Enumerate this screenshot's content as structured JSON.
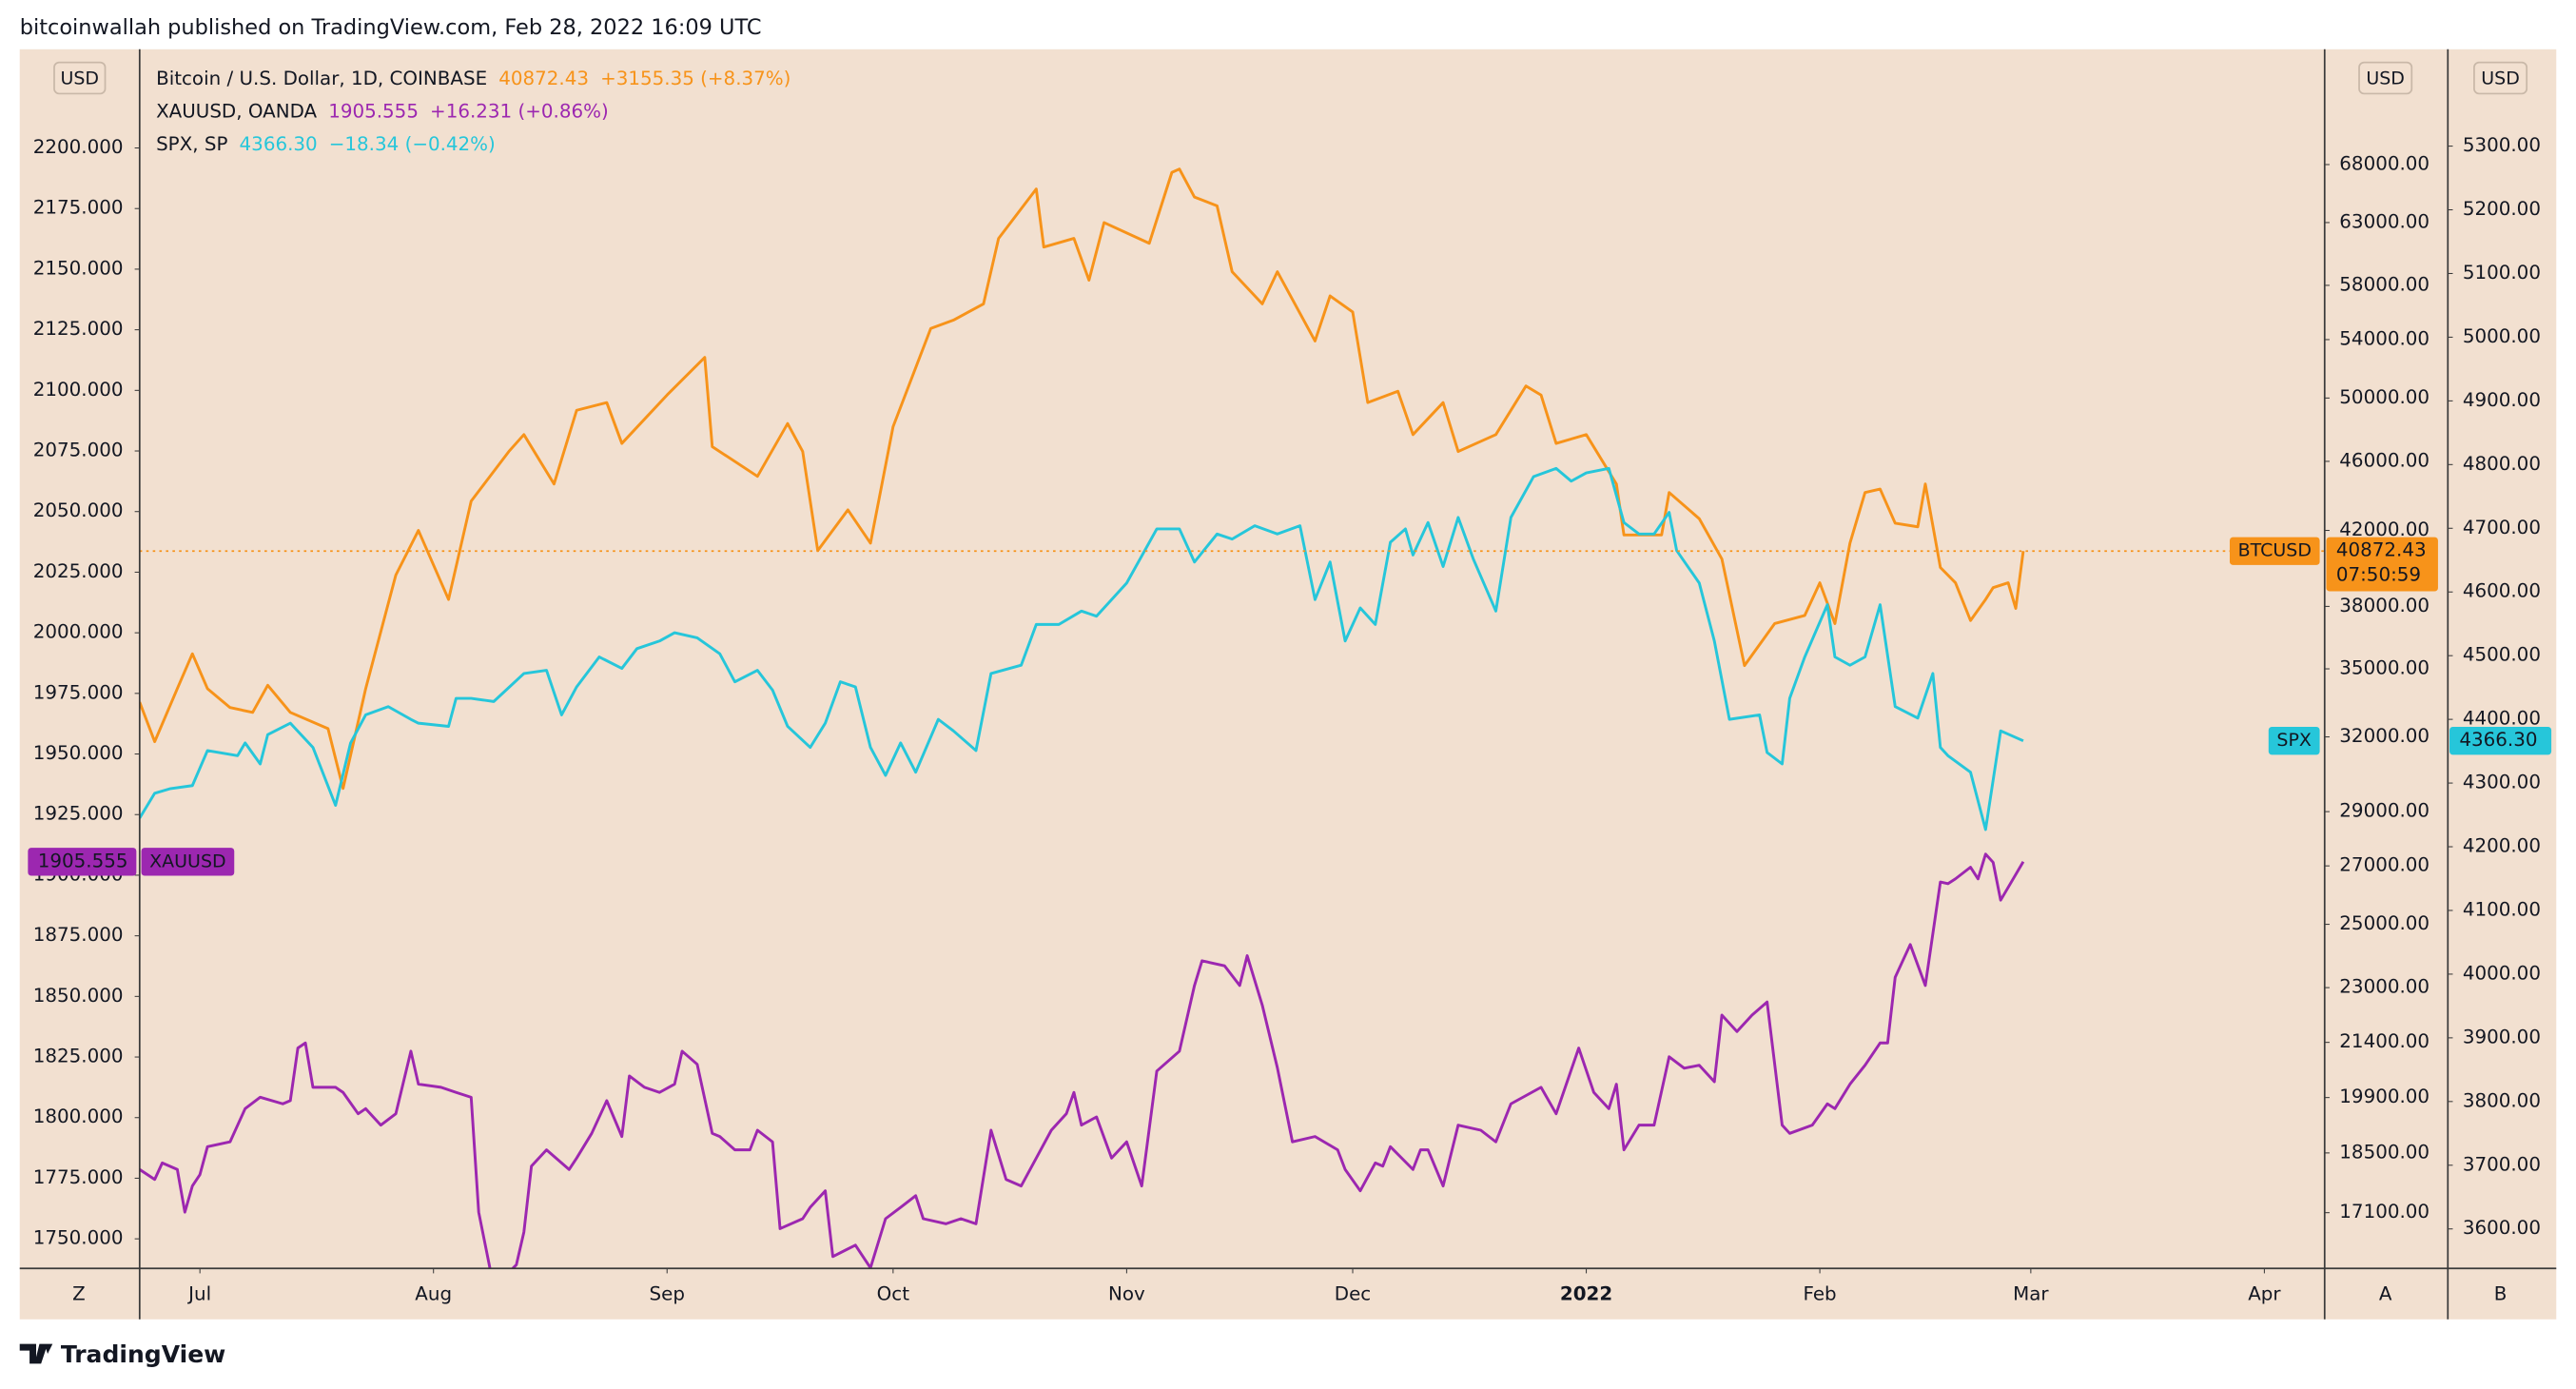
{
  "header": "bitcoinwallah published on TradingView.com, Feb 28, 2022 16:09 UTC",
  "branding": "TradingView",
  "chart_data": {
    "type": "line",
    "axis_unit": "USD",
    "axis_buttons": [
      "Z",
      "A",
      "B"
    ],
    "xlim": [
      1,
      291
    ],
    "xticks": [
      {
        "value": 9,
        "label": "Jul"
      },
      {
        "value": 40,
        "label": "Aug"
      },
      {
        "value": 71,
        "label": "Sep"
      },
      {
        "value": 101,
        "label": "Oct"
      },
      {
        "value": 132,
        "label": "Nov"
      },
      {
        "value": 162,
        "label": "Dec"
      },
      {
        "value": 193,
        "label": "2022"
      },
      {
        "value": 224,
        "label": "Feb"
      },
      {
        "value": 252,
        "label": "Mar"
      },
      {
        "value": 283,
        "label": "Apr"
      }
    ],
    "ylim": [
      1737.8,
      2240.7
    ],
    "yticks": [
      {
        "value": 1750,
        "label": "1750.000"
      },
      {
        "value": 1775,
        "label": "1775.000"
      },
      {
        "value": 1800,
        "label": "1800.000"
      },
      {
        "value": 1825,
        "label": "1825.000"
      },
      {
        "value": 1850,
        "label": "1850.000"
      },
      {
        "value": 1875,
        "label": "1875.000"
      },
      {
        "value": 1900,
        "label": "1900.000"
      },
      {
        "value": 1925,
        "label": "1925.000"
      },
      {
        "value": 1950,
        "label": "1950.000"
      },
      {
        "value": 1975,
        "label": "1975.000"
      },
      {
        "value": 2000,
        "label": "2000.000"
      },
      {
        "value": 2025,
        "label": "2025.000"
      },
      {
        "value": 2050,
        "label": "2050.000"
      },
      {
        "value": 2075,
        "label": "2075.000"
      },
      {
        "value": 2100,
        "label": "2100.000"
      },
      {
        "value": 2125,
        "label": "2125.000"
      },
      {
        "value": 2150,
        "label": "2150.000"
      },
      {
        "value": 2175,
        "label": "2175.000"
      },
      {
        "value": 2200,
        "label": "2200.000"
      }
    ],
    "y2lim": [
      15890,
      79150
    ],
    "y2log": true,
    "y2ticks": [
      {
        "value": 17100,
        "label": "17100.00"
      },
      {
        "value": 18500,
        "label": "18500.00"
      },
      {
        "value": 19900,
        "label": "19900.00"
      },
      {
        "value": 21400,
        "label": "21400.00"
      },
      {
        "value": 23000,
        "label": "23000.00"
      },
      {
        "value": 25000,
        "label": "25000.00"
      },
      {
        "value": 27000,
        "label": "27000.00"
      },
      {
        "value": 29000,
        "label": "29000.00"
      },
      {
        "value": 32000,
        "label": "32000.00"
      },
      {
        "value": 35000,
        "label": "35000.00"
      },
      {
        "value": 38000,
        "label": "38000.00"
      },
      {
        "value": 42000,
        "label": "42000.00"
      },
      {
        "value": 46000,
        "label": "46000.00"
      },
      {
        "value": 50000,
        "label": "50000.00"
      },
      {
        "value": 54000,
        "label": "54000.00"
      },
      {
        "value": 58000,
        "label": "58000.00"
      },
      {
        "value": 63000,
        "label": "63000.00"
      },
      {
        "value": 68000,
        "label": "68000.00"
      }
    ],
    "y3lim": [
      3538,
      5452
    ],
    "y3ticks": [
      {
        "value": 3600,
        "label": "3600.00"
      },
      {
        "value": 3700,
        "label": "3700.00"
      },
      {
        "value": 3800,
        "label": "3800.00"
      },
      {
        "value": 3900,
        "label": "3900.00"
      },
      {
        "value": 4000,
        "label": "4000.00"
      },
      {
        "value": 4100,
        "label": "4100.00"
      },
      {
        "value": 4200,
        "label": "4200.00"
      },
      {
        "value": 4300,
        "label": "4300.00"
      },
      {
        "value": 4400,
        "label": "4400.00"
      },
      {
        "value": 4500,
        "label": "4500.00"
      },
      {
        "value": 4600,
        "label": "4600.00"
      },
      {
        "value": 4700,
        "label": "4700.00"
      },
      {
        "value": 4800,
        "label": "4800.00"
      },
      {
        "value": 4900,
        "label": "4900.00"
      },
      {
        "value": 5000,
        "label": "5000.00"
      },
      {
        "value": 5100,
        "label": "5100.00"
      },
      {
        "value": 5200,
        "label": "5200.00"
      },
      {
        "value": 5300,
        "label": "5300.00"
      }
    ],
    "series": [
      {
        "name": "BTCUSD",
        "legend": "Bitcoin / U.S. Dollar, 1D, COINBASE",
        "color": "#f7931a",
        "axis": "y2",
        "last_label": "40872.43",
        "change": "+3155.35 (+8.37%)",
        "countdown": "07:50:59",
        "x": [
          1,
          3,
          6,
          8,
          10,
          13,
          16,
          18,
          21,
          26,
          28,
          31,
          35,
          38,
          42,
          45,
          50,
          52,
          56,
          59,
          63,
          65,
          71,
          76,
          77,
          83,
          87,
          89,
          91,
          95,
          98,
          101,
          106,
          109,
          113,
          115,
          120,
          121,
          125,
          127,
          129,
          135,
          138,
          139,
          141,
          144,
          146,
          150,
          152,
          157,
          159,
          162,
          164,
          168,
          170,
          174,
          176,
          181,
          185,
          187,
          189,
          193,
          197,
          198,
          203,
          204,
          208,
          211,
          214,
          218,
          222,
          224,
          226,
          228,
          230,
          232,
          234,
          237,
          238,
          240,
          242,
          244,
          246,
          247,
          249,
          250,
          251
        ],
        "values": [
          33500,
          31800,
          34100,
          35700,
          34100,
          33260,
          33050,
          34250,
          33050,
          32350,
          29900,
          34100,
          39600,
          42000,
          38350,
          43650,
          46600,
          47650,
          44650,
          49200,
          49700,
          47100,
          50200,
          52750,
          46900,
          45100,
          48350,
          46600,
          40900,
          43150,
          41300,
          48150,
          54800,
          55400,
          56600,
          61700,
          65850,
          61000,
          61700,
          58400,
          63000,
          61300,
          67300,
          67600,
          65150,
          64400,
          59050,
          56600,
          59050,
          53900,
          57200,
          56000,
          49700,
          50450,
          47650,
          49700,
          46600,
          47650,
          50800,
          50200,
          47100,
          47650,
          44650,
          41750,
          41750,
          44150,
          42650,
          40450,
          35150,
          37150,
          37550,
          39200,
          37150,
          41300,
          44150,
          44350,
          42400,
          42200,
          44650,
          40000,
          39200,
          37300,
          38350,
          38950,
          39200,
          37900,
          40872.43
        ]
      },
      {
        "name": "XAUUSD",
        "legend": "XAUUSD, OANDA",
        "color": "#9c27b0",
        "axis": "y",
        "last_label": "1905.555",
        "change": "+16.231 (+0.86%)",
        "x": [
          1,
          3,
          4,
          6,
          7,
          8,
          9,
          10,
          13,
          15,
          17,
          20,
          21,
          22,
          23,
          24,
          27,
          28,
          30,
          31,
          33,
          35,
          37,
          38,
          41,
          43,
          45,
          46,
          48,
          51,
          52,
          53,
          55,
          58,
          59,
          61,
          63,
          65,
          66,
          68,
          70,
          72,
          73,
          75,
          77,
          78,
          80,
          82,
          83,
          85,
          86,
          89,
          90,
          92,
          93,
          96,
          97,
          98,
          100,
          102,
          104,
          105,
          108,
          110,
          112,
          114,
          116,
          118,
          120,
          122,
          124,
          125,
          126,
          128,
          130,
          132,
          134,
          136,
          139,
          141,
          142,
          145,
          147,
          148,
          150,
          152,
          154,
          157,
          160,
          161,
          163,
          165,
          166,
          167,
          170,
          171,
          172,
          174,
          176,
          179,
          181,
          183,
          187,
          189,
          192,
          194,
          196,
          197,
          198,
          200,
          202,
          204,
          206,
          208,
          210,
          211,
          213,
          215,
          217,
          219,
          220,
          223,
          225,
          226,
          228,
          230,
          232,
          233,
          234,
          236,
          238,
          240,
          241,
          242,
          244,
          245,
          246,
          247,
          248,
          251
        ],
        "values": [
          1778.6,
          1774.5,
          1781.3,
          1778.6,
          1761,
          1771.8,
          1776.5,
          1788,
          1790,
          1803.7,
          1808.4,
          1805.7,
          1807,
          1828.7,
          1830.8,
          1812.5,
          1812.5,
          1810.4,
          1801.6,
          1803.7,
          1796.9,
          1801.6,
          1827.4,
          1813.8,
          1812.5,
          1810.4,
          1808.4,
          1761,
          1730,
          1739.3,
          1752.8,
          1780,
          1786.7,
          1778.6,
          1783.3,
          1793.5,
          1807,
          1792.2,
          1817.2,
          1812.5,
          1810.4,
          1813.8,
          1827.4,
          1822,
          1793.5,
          1792.2,
          1786.7,
          1786.7,
          1794.8,
          1790,
          1754.2,
          1758.3,
          1763,
          1769.8,
          1742.7,
          1747.4,
          1742.7,
          1738,
          1758.3,
          1763,
          1767.8,
          1758.3,
          1756.2,
          1758.3,
          1756.2,
          1794.8,
          1774.5,
          1771.8,
          1783.3,
          1794.8,
          1801.6,
          1810.4,
          1796.9,
          1800.3,
          1783.3,
          1790,
          1771.8,
          1819.2,
          1827.4,
          1854.5,
          1864.7,
          1862.6,
          1854.5,
          1866.8,
          1846.4,
          1820.6,
          1790,
          1792.2,
          1786.7,
          1778.6,
          1769.8,
          1781.3,
          1780,
          1788,
          1778.6,
          1786.7,
          1786.7,
          1771.8,
          1796.9,
          1794.8,
          1790,
          1805.7,
          1812.5,
          1801.6,
          1828.7,
          1810.4,
          1803.7,
          1813.8,
          1786.7,
          1796.9,
          1796.9,
          1825.1,
          1820.4,
          1821.6,
          1814.8,
          1842.3,
          1835.5,
          1842.3,
          1847.7,
          1796.9,
          1793.5,
          1796.9,
          1805.7,
          1803.7,
          1813.8,
          1821.6,
          1830.8,
          1830.8,
          1857.9,
          1871.4,
          1854.5,
          1897.2,
          1896.5,
          1898.5,
          1903.3,
          1898.5,
          1908.7,
          1905.3,
          1889.7,
          1905.555
        ]
      },
      {
        "name": "SPX",
        "legend": "SPX, SP",
        "color": "#26c6da",
        "axis": "y3",
        "last_label": "4366.30",
        "change": "−18.34 (−0.42%)",
        "x": [
          1,
          3,
          5,
          8,
          10,
          14,
          15,
          17,
          18,
          21,
          24,
          27,
          29,
          31,
          34,
          37,
          38,
          42,
          43,
          45,
          48,
          52,
          55,
          57,
          59,
          62,
          65,
          67,
          70,
          72,
          75,
          78,
          80,
          83,
          85,
          87,
          90,
          92,
          94,
          96,
          98,
          100,
          102,
          104,
          107,
          109,
          112,
          114,
          118,
          120,
          123,
          126,
          128,
          132,
          136,
          139,
          141,
          144,
          146,
          149,
          152,
          155,
          157,
          159,
          161,
          163,
          165,
          167,
          169,
          170,
          172,
          174,
          176,
          178,
          181,
          183,
          186,
          189,
          191,
          193,
          196,
          198,
          200,
          202,
          204,
          205,
          208,
          210,
          212,
          216,
          217,
          219,
          220,
          222,
          225,
          226,
          228,
          230,
          232,
          234,
          237,
          239,
          240,
          241,
          244,
          246,
          248,
          251
        ],
        "values": [
          4245,
          4284,
          4291,
          4296,
          4351,
          4343,
          4363,
          4330,
          4376,
          4394,
          4356,
          4265,
          4363,
          4407,
          4420,
          4400,
          4394,
          4389,
          4433,
          4433,
          4428,
          4472,
          4477,
          4407,
          4451,
          4498,
          4480,
          4511,
          4523,
          4536,
          4528,
          4503,
          4459,
          4477,
          4446,
          4389,
          4356,
          4394,
          4459,
          4451,
          4356,
          4312,
          4363,
          4317,
          4400,
          4382,
          4351,
          4472,
          4485,
          4549,
          4549,
          4570,
          4562,
          4614,
          4699,
          4699,
          4647,
          4691,
          4683,
          4704,
          4691,
          4704,
          4588,
          4647,
          4523,
          4575,
          4549,
          4678,
          4699,
          4658,
          4709,
          4640,
          4717,
          4652,
          4570,
          4717,
          4781,
          4794,
          4774,
          4787,
          4794,
          4709,
          4691,
          4691,
          4725,
          4665,
          4614,
          4523,
          4400,
          4407,
          4348,
          4330,
          4433,
          4498,
          4580,
          4498,
          4485,
          4498,
          4580,
          4420,
          4402,
          4472,
          4356,
          4343,
          4317,
          4227,
          4382,
          4366.3
        ]
      }
    ]
  }
}
